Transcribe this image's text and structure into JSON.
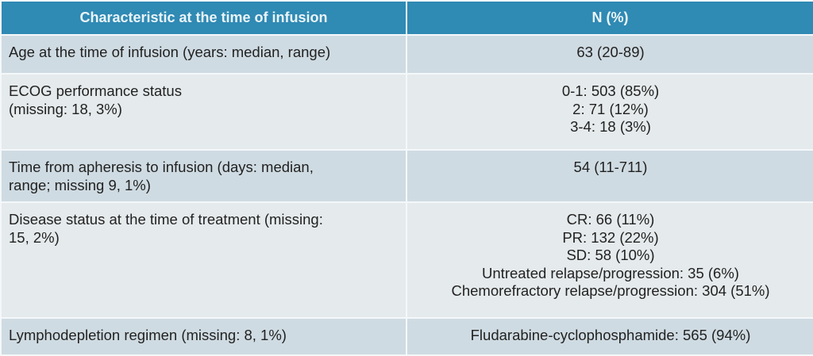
{
  "header": {
    "characteristic": "Characteristic at the time of infusion",
    "n": "N (%)"
  },
  "rows": [
    {
      "label": [
        "Age at the time of infusion (years: median, range)"
      ],
      "values": [
        "63 (20-89)"
      ]
    },
    {
      "label": [
        "ECOG performance status",
        "(missing: 18, 3%)"
      ],
      "values": [
        "0-1: 503 (85%)",
        "2: 71 (12%)",
        "3-4: 18 (3%)"
      ]
    },
    {
      "label": [
        "Time from apheresis to infusion (days: median,",
        "range; missing 9, 1%)"
      ],
      "values": [
        "54 (11-711)"
      ]
    },
    {
      "label": [
        "Disease status at the time of treatment (missing:",
        "15, 2%)"
      ],
      "values": [
        "CR: 66 (11%)",
        "PR: 132 (22%)",
        "SD: 58 (10%)",
        "Untreated relapse/progression: 35 (6%)",
        "Chemorefractory relapse/progression: 304 (51%)"
      ]
    },
    {
      "label": [
        "Lymphodepletion regimen (missing: 8, 1%)"
      ],
      "values": [
        "Fludarabine-cyclophosphamide: 565 (94%)"
      ]
    }
  ],
  "colors": {
    "header": "#2f8ab4",
    "row_dark": "#cfdbe2",
    "row_light": "#e5eaec"
  }
}
